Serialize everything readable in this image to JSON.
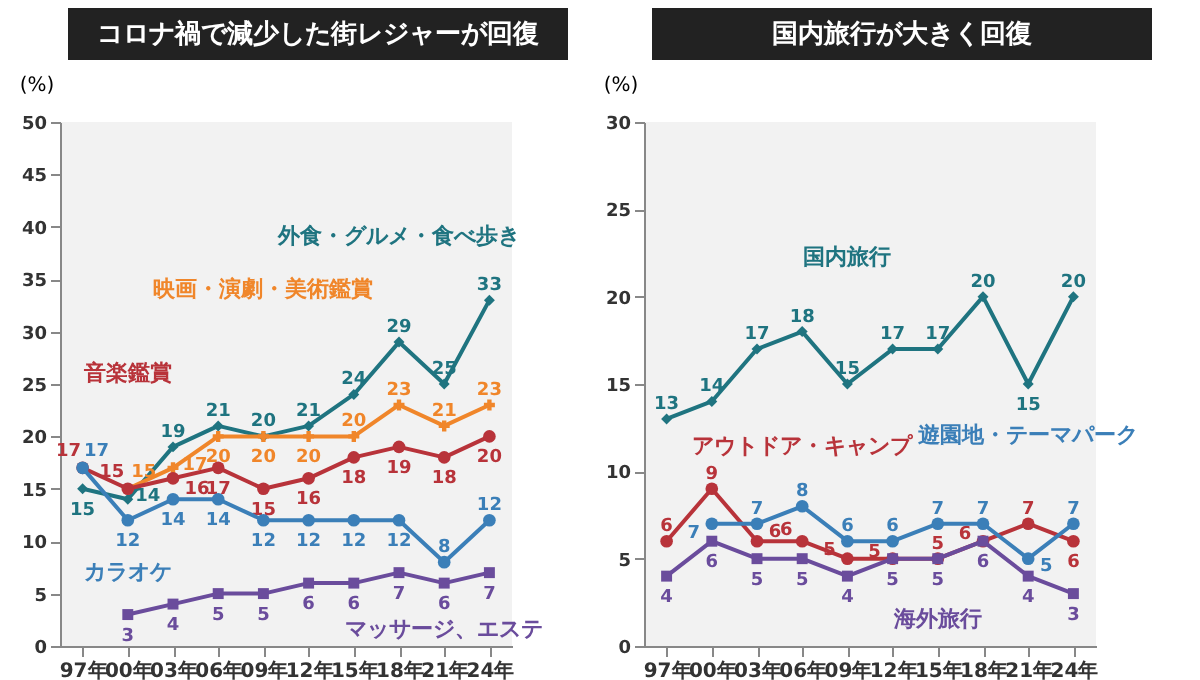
{
  "chart_data": [
    {
      "type": "line",
      "title": "コロナ禍で減少した街レジャーが回復",
      "ylabel": "(%)",
      "categories": [
        "97年",
        "00年",
        "03年",
        "06年",
        "09年",
        "12年",
        "15年",
        "18年",
        "21年",
        "24年"
      ],
      "ylim": [
        0,
        50
      ],
      "yticks": [
        0,
        5,
        10,
        15,
        20,
        25,
        30,
        35,
        40,
        45,
        50
      ],
      "grid": false,
      "data_labels": true,
      "series": [
        {
          "name": "外食・グルメ・食べ歩き",
          "color": "#1f7480",
          "marker": "diamond",
          "values": [
            15,
            14,
            19,
            21,
            20,
            21,
            24,
            29,
            25,
            33
          ]
        },
        {
          "name": "映画・演劇・美術鑑賞",
          "color": "#f0862a",
          "marker": "cross",
          "values": [
            null,
            15,
            17,
            20,
            20,
            20,
            20,
            23,
            21,
            23
          ]
        },
        {
          "name": "音楽鑑賞",
          "color": "#b8333a",
          "marker": "circle",
          "values": [
            17,
            15,
            16,
            17,
            15,
            16,
            18,
            19,
            18,
            20
          ]
        },
        {
          "name": "カラオケ",
          "color": "#3b7fb8",
          "marker": "circle",
          "values": [
            17,
            12,
            14,
            14,
            12,
            12,
            12,
            12,
            8,
            12
          ]
        },
        {
          "name": "マッサージ、エステ",
          "color": "#6a4c9c",
          "marker": "square",
          "values": [
            null,
            3,
            4,
            5,
            5,
            6,
            6,
            7,
            6,
            7
          ]
        }
      ]
    },
    {
      "type": "line",
      "title": "国内旅行が大きく回復",
      "ylabel": "(%)",
      "categories": [
        "97年",
        "00年",
        "03年",
        "06年",
        "09年",
        "12年",
        "15年",
        "18年",
        "21年",
        "24年"
      ],
      "ylim": [
        0,
        30
      ],
      "yticks": [
        0,
        5,
        10,
        15,
        20,
        25,
        30
      ],
      "grid": false,
      "data_labels": true,
      "series": [
        {
          "name": "国内旅行",
          "color": "#1f7480",
          "marker": "diamond",
          "values": [
            13,
            14,
            17,
            18,
            15,
            17,
            17,
            20,
            15,
            20
          ]
        },
        {
          "name": "アウトドア・キャンプ",
          "color": "#b8333a",
          "marker": "circle",
          "values": [
            6,
            9,
            6,
            6,
            5,
            5,
            5,
            6,
            7,
            6
          ]
        },
        {
          "name": "遊園地・テーマパーク",
          "color": "#3b7fb8",
          "marker": "circle",
          "values": [
            null,
            7,
            7,
            8,
            6,
            6,
            7,
            7,
            5,
            7
          ]
        },
        {
          "name": "海外旅行",
          "color": "#6a4c9c",
          "marker": "square",
          "values": [
            4,
            6,
            5,
            5,
            4,
            5,
            5,
            6,
            4,
            3
          ]
        }
      ]
    }
  ]
}
